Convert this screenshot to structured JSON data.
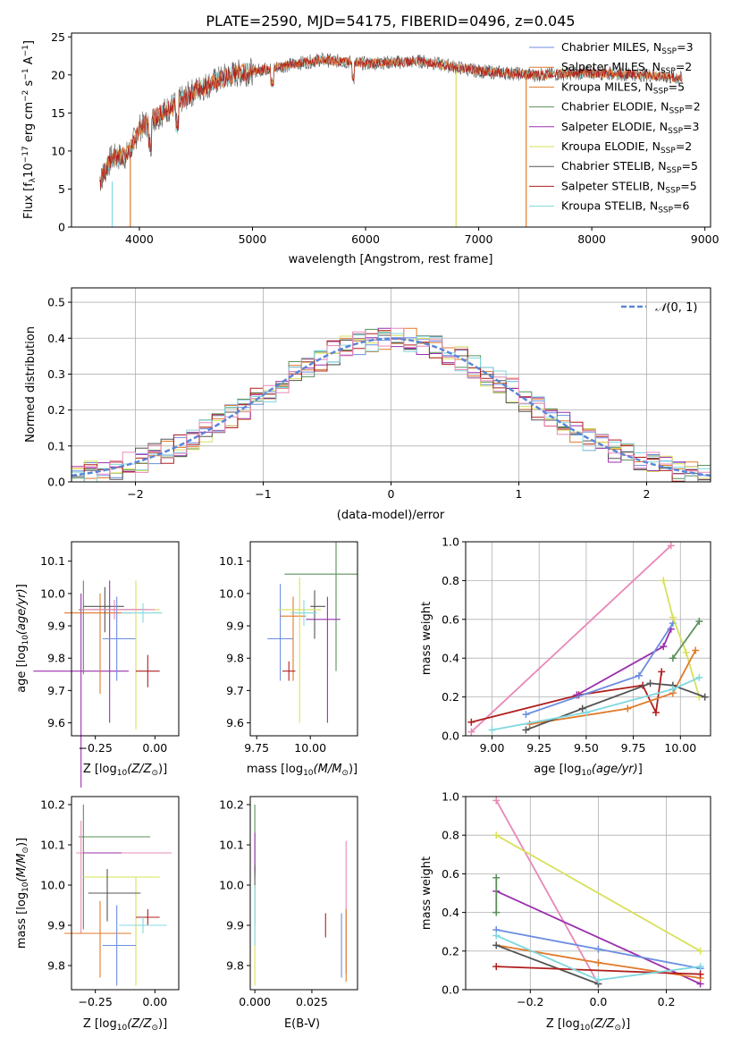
{
  "title": "PLATE=2590, MJD=54175, FIBERID=0496, z=0.045",
  "colors": {
    "Chabrier MILES": "#6b8ee0",
    "Salpeter MILES": "#e07a2a",
    "Kroupa MILES": "#e07a2a",
    "Chabrier ELODIE": "#5a8f5a",
    "Salpeter ELODIE": "#9b2fae",
    "Kroupa ELODIE": "#d8e05a",
    "Chabrier STELIB": "#555555",
    "Salpeter STELIB": "#b01e1e",
    "Kroupa STELIB": "#80d8e0",
    "pink": "#e888b8",
    "normal": "#5b86d6"
  },
  "chart_data": [
    {
      "type": "line",
      "id": "spectrum",
      "xlabel": "wavelength [Angstrom, rest frame]",
      "ylabel": "Flux [f",
      "xlim": [
        3400,
        9050
      ],
      "ylim": [
        0,
        25.5
      ],
      "xticks": [
        4000,
        5000,
        6000,
        7000,
        8000,
        9000
      ],
      "yticks": [
        0,
        5,
        10,
        15,
        20,
        25
      ],
      "legend": [
        {
          "label": "Chabrier MILES, N",
          "n": "3",
          "color": "#6b8ee0"
        },
        {
          "label": "Salpeter MILES, N",
          "n": "2",
          "color": "#e07a2a"
        },
        {
          "label": "Kroupa MILES, N",
          "n": "5",
          "color": "#e07a2a"
        },
        {
          "label": "Chabrier ELODIE, N",
          "n": "2",
          "color": "#5a8f5a"
        },
        {
          "label": "Salpeter ELODIE, N",
          "n": "3",
          "color": "#9b2fae"
        },
        {
          "label": "Kroupa ELODIE, N",
          "n": "2",
          "color": "#d8e05a"
        },
        {
          "label": "Chabrier STELIB, N",
          "n": "5",
          "color": "#555555"
        },
        {
          "label": "Salpeter STELIB, N",
          "n": "5",
          "color": "#b01e1e"
        },
        {
          "label": "Kroupa STELIB, N",
          "n": "6",
          "color": "#80d8e0"
        }
      ],
      "continuum": [
        [
          3650,
          6
        ],
        [
          3750,
          9
        ],
        [
          3900,
          9.5
        ],
        [
          4000,
          13
        ],
        [
          4300,
          16
        ],
        [
          4500,
          18
        ],
        [
          4800,
          20
        ],
        [
          5200,
          21
        ],
        [
          5600,
          22
        ],
        [
          6000,
          21.5
        ],
        [
          6500,
          21.8
        ],
        [
          7000,
          20.5
        ],
        [
          7500,
          20
        ],
        [
          8000,
          20.3
        ],
        [
          8500,
          20
        ],
        [
          8800,
          19.5
        ]
      ]
    },
    {
      "type": "bar",
      "id": "residuals",
      "xlabel": "(data-model)/error",
      "ylabel": "Normed distribution",
      "xlim": [
        -2.5,
        2.5
      ],
      "ylim": [
        0,
        0.54
      ],
      "xticks": [
        -2,
        -1,
        0,
        1,
        2
      ],
      "yticks": [
        0.0,
        0.1,
        0.2,
        0.3,
        0.4,
        0.5
      ],
      "legend": [
        {
          "label": "(0, 1)",
          "style": "dashed"
        }
      ]
    },
    {
      "type": "scatter",
      "id": "age-vs-Z",
      "xlabel": "Z [log",
      "ylabel": "age  [log",
      "xlim": [
        -0.35,
        0.1
      ],
      "ylim": [
        9.56,
        10.16
      ],
      "xticks": [
        -0.25,
        0.0
      ],
      "yticks": [
        9.6,
        9.7,
        9.8,
        9.9,
        10.0,
        10.1
      ],
      "points": [
        {
          "x": -0.31,
          "y": 9.76,
          "xerr": [
            0.2,
            0.2
          ],
          "yerr": [
            0.36,
            0.24
          ],
          "color": "#9b2fae"
        },
        {
          "x": -0.3,
          "y": 9.95,
          "xerr": [
            0.02,
            0.28
          ],
          "yerr": [
            0.2,
            0.09
          ],
          "color": "#5a8f5a"
        },
        {
          "x": -0.19,
          "y": 9.95,
          "xerr": [
            0.08,
            0.14
          ],
          "yerr": [
            0.35,
            0.09
          ],
          "color": "#9b2fae"
        },
        {
          "x": -0.23,
          "y": 9.94,
          "xerr": [
            0.15,
            0.14
          ],
          "yerr": [
            0.25,
            0.06
          ],
          "color": "#e07a2a"
        },
        {
          "x": -0.21,
          "y": 9.96,
          "xerr": [
            0.09,
            0.08
          ],
          "yerr": [
            0.08,
            0.06
          ],
          "color": "#555555"
        },
        {
          "x": -0.16,
          "y": 9.86,
          "xerr": [
            0.06,
            0.08
          ],
          "yerr": [
            0.13,
            0.13
          ],
          "color": "#6b8ee0"
        },
        {
          "x": -0.08,
          "y": 9.95,
          "xerr": [
            0.22,
            0.1
          ],
          "yerr": [
            0.37,
            0.09
          ],
          "color": "#d8e05a"
        },
        {
          "x": -0.17,
          "y": 9.95,
          "xerr": [
            0.14,
            0.17
          ],
          "yerr": [
            0.03,
            0.03
          ],
          "color": "#e888b8"
        },
        {
          "x": -0.05,
          "y": 9.94,
          "xerr": [
            0.09,
            0.08
          ],
          "yerr": [
            0.03,
            0.03
          ],
          "color": "#80d8e0"
        },
        {
          "x": -0.03,
          "y": 9.76,
          "xerr": [
            0.05,
            0.05
          ],
          "yerr": [
            0.05,
            0.05
          ],
          "color": "#b01e1e"
        }
      ]
    },
    {
      "type": "scatter",
      "id": "age-vs-mass",
      "xlabel": "mass [log",
      "ylabel": "",
      "xlim": [
        9.72,
        10.22
      ],
      "ylim": [
        9.56,
        10.16
      ],
      "xticks": [
        9.75,
        10.0
      ],
      "yticks": [
        9.6,
        9.7,
        9.8,
        9.9,
        10.0,
        10.1
      ],
      "points": [
        {
          "x": 10.12,
          "y": 10.06,
          "xerr": [
            0.24,
            0.1
          ],
          "yerr": [
            0.3,
            0.1
          ],
          "color": "#5a8f5a"
        },
        {
          "x": 10.08,
          "y": 9.92,
          "xerr": [
            0.1,
            0.06
          ],
          "yerr": [
            0.32,
            0.07
          ],
          "color": "#9b2fae"
        },
        {
          "x": 10.02,
          "y": 9.96,
          "xerr": [
            0.02,
            0.05
          ],
          "yerr": [
            0.1,
            0.05
          ],
          "color": "#555555"
        },
        {
          "x": 9.86,
          "y": 9.86,
          "xerr": [
            0.06,
            0.06
          ],
          "yerr": [
            0.13,
            0.17
          ],
          "color": "#6b8ee0"
        },
        {
          "x": 9.92,
          "y": 9.93,
          "xerr": [
            0.06,
            0.06
          ],
          "yerr": [
            0.2,
            0.06
          ],
          "color": "#e07a2a"
        },
        {
          "x": 9.9,
          "y": 9.76,
          "xerr": [
            0.03,
            0.03
          ],
          "yerr": [
            0.03,
            0.03
          ],
          "color": "#b01e1e"
        },
        {
          "x": 9.95,
          "y": 9.95,
          "xerr": [
            0.1,
            0.1
          ],
          "yerr": [
            0.35,
            0.1
          ],
          "color": "#d8e05a"
        },
        {
          "x": 9.97,
          "y": 9.94,
          "xerr": [
            0.06,
            0.06
          ],
          "yerr": [
            0.04,
            0.04
          ],
          "color": "#80d8e0"
        }
      ]
    },
    {
      "type": "line",
      "id": "weight-vs-age",
      "xlabel": "age  [log",
      "ylabel": "mass weight",
      "xlim": [
        8.86,
        10.16
      ],
      "ylim": [
        0,
        1.0
      ],
      "xticks": [
        9.0,
        9.25,
        9.5,
        9.75,
        10.0
      ],
      "yticks": [
        0.0,
        0.2,
        0.4,
        0.6,
        0.8,
        1.0
      ],
      "series": [
        {
          "color": "#e888b8",
          "x": [
            8.89,
            9.95
          ],
          "y": [
            0.02,
            0.98
          ]
        },
        {
          "color": "#b01e1e",
          "x": [
            8.89,
            9.46,
            9.8,
            9.87,
            9.9
          ],
          "y": [
            0.07,
            0.21,
            0.26,
            0.12,
            0.33
          ]
        },
        {
          "color": "#9b2fae",
          "x": [
            9.45,
            9.91,
            9.95
          ],
          "y": [
            0.21,
            0.46,
            0.55
          ]
        },
        {
          "color": "#6b8ee0",
          "x": [
            9.18,
            9.78,
            9.96
          ],
          "y": [
            0.11,
            0.31,
            0.58
          ]
        },
        {
          "color": "#d8e05a",
          "x": [
            9.91,
            9.96,
            10.03,
            10.1
          ],
          "y": [
            0.8,
            0.61,
            0.43,
            0.2
          ]
        },
        {
          "color": "#5a8f5a",
          "x": [
            9.96,
            10.1
          ],
          "y": [
            0.4,
            0.59
          ]
        },
        {
          "color": "#e07a2a",
          "x": [
            9.2,
            9.72,
            9.96,
            10.08
          ],
          "y": [
            0.06,
            0.14,
            0.22,
            0.44
          ]
        },
        {
          "color": "#555555",
          "x": [
            9.18,
            9.48,
            9.84,
            9.96,
            10.13
          ],
          "y": [
            0.03,
            0.14,
            0.27,
            0.26,
            0.2
          ]
        },
        {
          "color": "#80d8e0",
          "x": [
            9.0,
            9.5,
            9.96,
            10.1
          ],
          "y": [
            0.03,
            0.12,
            0.24,
            0.3
          ]
        }
      ]
    },
    {
      "type": "scatter",
      "id": "mass-vs-Z",
      "xlabel": "Z [log",
      "ylabel": "mass [log",
      "xlim": [
        -0.35,
        0.1
      ],
      "ylim": [
        9.74,
        10.22
      ],
      "xticks": [
        -0.25,
        0.0
      ],
      "yticks": [
        9.8,
        9.9,
        10.0,
        10.1,
        10.2
      ],
      "points": [
        {
          "x": -0.3,
          "y": 10.12,
          "xerr": [
            0.02,
            0.28
          ],
          "yerr": [
            0.23,
            0.08
          ],
          "color": "#5a8f5a"
        },
        {
          "x": -0.31,
          "y": 10.08,
          "xerr": [
            0.02,
            0.38
          ],
          "yerr": [
            0.2,
            0.08
          ],
          "color": "#e888b8"
        },
        {
          "x": -0.27,
          "y": 10.08,
          "xerr": [
            0.03,
            0.13
          ],
          "yerr": [
            0.0,
            0.0
          ],
          "color": "#9b2fae"
        },
        {
          "x": -0.08,
          "y": 10.02,
          "xerr": [
            0.22,
            0.1
          ],
          "yerr": [
            0.27,
            0.0
          ],
          "color": "#d8e05a"
        },
        {
          "x": -0.2,
          "y": 9.98,
          "xerr": [
            0.08,
            0.14
          ],
          "yerr": [
            0.07,
            0.06
          ],
          "color": "#555555"
        },
        {
          "x": -0.23,
          "y": 9.88,
          "xerr": [
            0.15,
            0.13
          ],
          "yerr": [
            0.11,
            0.08
          ],
          "color": "#e07a2a"
        },
        {
          "x": -0.16,
          "y": 9.85,
          "xerr": [
            0.06,
            0.08
          ],
          "yerr": [
            0.1,
            0.1
          ],
          "color": "#6b8ee0"
        },
        {
          "x": -0.03,
          "y": 9.92,
          "xerr": [
            0.05,
            0.05
          ],
          "yerr": [
            0.02,
            0.02
          ],
          "color": "#b01e1e"
        },
        {
          "x": -0.05,
          "y": 9.9,
          "xerr": [
            0.1,
            0.1
          ],
          "yerr": [
            0.02,
            0.02
          ],
          "color": "#80d8e0"
        }
      ]
    },
    {
      "type": "scatter",
      "id": "mass-vs-ebv",
      "xlabel": "E(B-V)",
      "ylabel": "",
      "xlim": [
        -0.002,
        0.045
      ],
      "ylim": [
        9.74,
        10.22
      ],
      "xticks": [
        0.0,
        0.025
      ],
      "xticklabels": [
        "0.000",
        "0.025"
      ],
      "yticks": [
        9.8,
        9.9,
        10.0,
        10.1,
        10.2
      ],
      "points": [
        {
          "x": 0.0,
          "y": 10.12,
          "yerr": [
            0.1,
            0.08
          ],
          "color": "#5a8f5a"
        },
        {
          "x": 0.0,
          "y": 10.08,
          "yerr": [
            0.05,
            0.05
          ],
          "color": "#9b2fae"
        },
        {
          "x": 0.0,
          "y": 10.0,
          "yerr": [
            0.1,
            0.05
          ],
          "color": "#555555"
        },
        {
          "x": 0.0,
          "y": 9.95,
          "yerr": [
            0.2,
            0.05
          ],
          "color": "#d8e05a"
        },
        {
          "x": 0.0,
          "y": 9.95,
          "yerr": [
            0.1,
            0.05
          ],
          "color": "#80d8e0"
        },
        {
          "x": 0.031,
          "y": 9.9,
          "yerr": [
            0.03,
            0.03
          ],
          "color": "#b01e1e"
        },
        {
          "x": 0.038,
          "y": 9.85,
          "yerr": [
            0.08,
            0.08
          ],
          "color": "#6b8ee0"
        },
        {
          "x": 0.04,
          "y": 9.94,
          "yerr": [
            0.16,
            0.17
          ],
          "color": "#e888b8"
        },
        {
          "x": 0.04,
          "y": 9.88,
          "yerr": [
            0.12,
            0.06
          ],
          "color": "#e07a2a"
        }
      ]
    },
    {
      "type": "line",
      "id": "weight-vs-Z",
      "xlabel": "Z [log",
      "ylabel": "mass weight",
      "xlim": [
        -0.39,
        0.33
      ],
      "ylim": [
        0,
        1.0
      ],
      "xticks": [
        -0.2,
        0.0,
        0.2
      ],
      "yticks": [
        0.0,
        0.2,
        0.4,
        0.6,
        0.8,
        1.0
      ],
      "series": [
        {
          "color": "#e888b8",
          "x": [
            -0.3,
            0.0
          ],
          "y": [
            0.98,
            0.03
          ]
        },
        {
          "color": "#d8e05a",
          "x": [
            -0.3,
            0.3
          ],
          "y": [
            0.8,
            0.2
          ]
        },
        {
          "color": "#9b2fae",
          "x": [
            -0.3,
            0.3
          ],
          "y": [
            0.51,
            0.03
          ]
        },
        {
          "color": "#6b8ee0",
          "x": [
            -0.3,
            0.0,
            0.3
          ],
          "y": [
            0.31,
            0.21,
            0.11
          ]
        },
        {
          "color": "#e07a2a",
          "x": [
            -0.3,
            0.0,
            0.3
          ],
          "y": [
            0.23,
            0.14,
            0.06
          ]
        },
        {
          "color": "#555555",
          "x": [
            -0.3,
            0.0
          ],
          "y": [
            0.23,
            0.03
          ]
        },
        {
          "color": "#b01e1e",
          "x": [
            -0.3,
            0.3
          ],
          "y": [
            0.12,
            0.08
          ]
        },
        {
          "color": "#80d8e0",
          "x": [
            -0.3,
            0.0,
            0.3
          ],
          "y": [
            0.28,
            0.05,
            0.12
          ]
        },
        {
          "color": "#5a8f5a",
          "x": [
            -0.3,
            -0.3
          ],
          "y": [
            0.58,
            0.4
          ]
        }
      ]
    }
  ]
}
